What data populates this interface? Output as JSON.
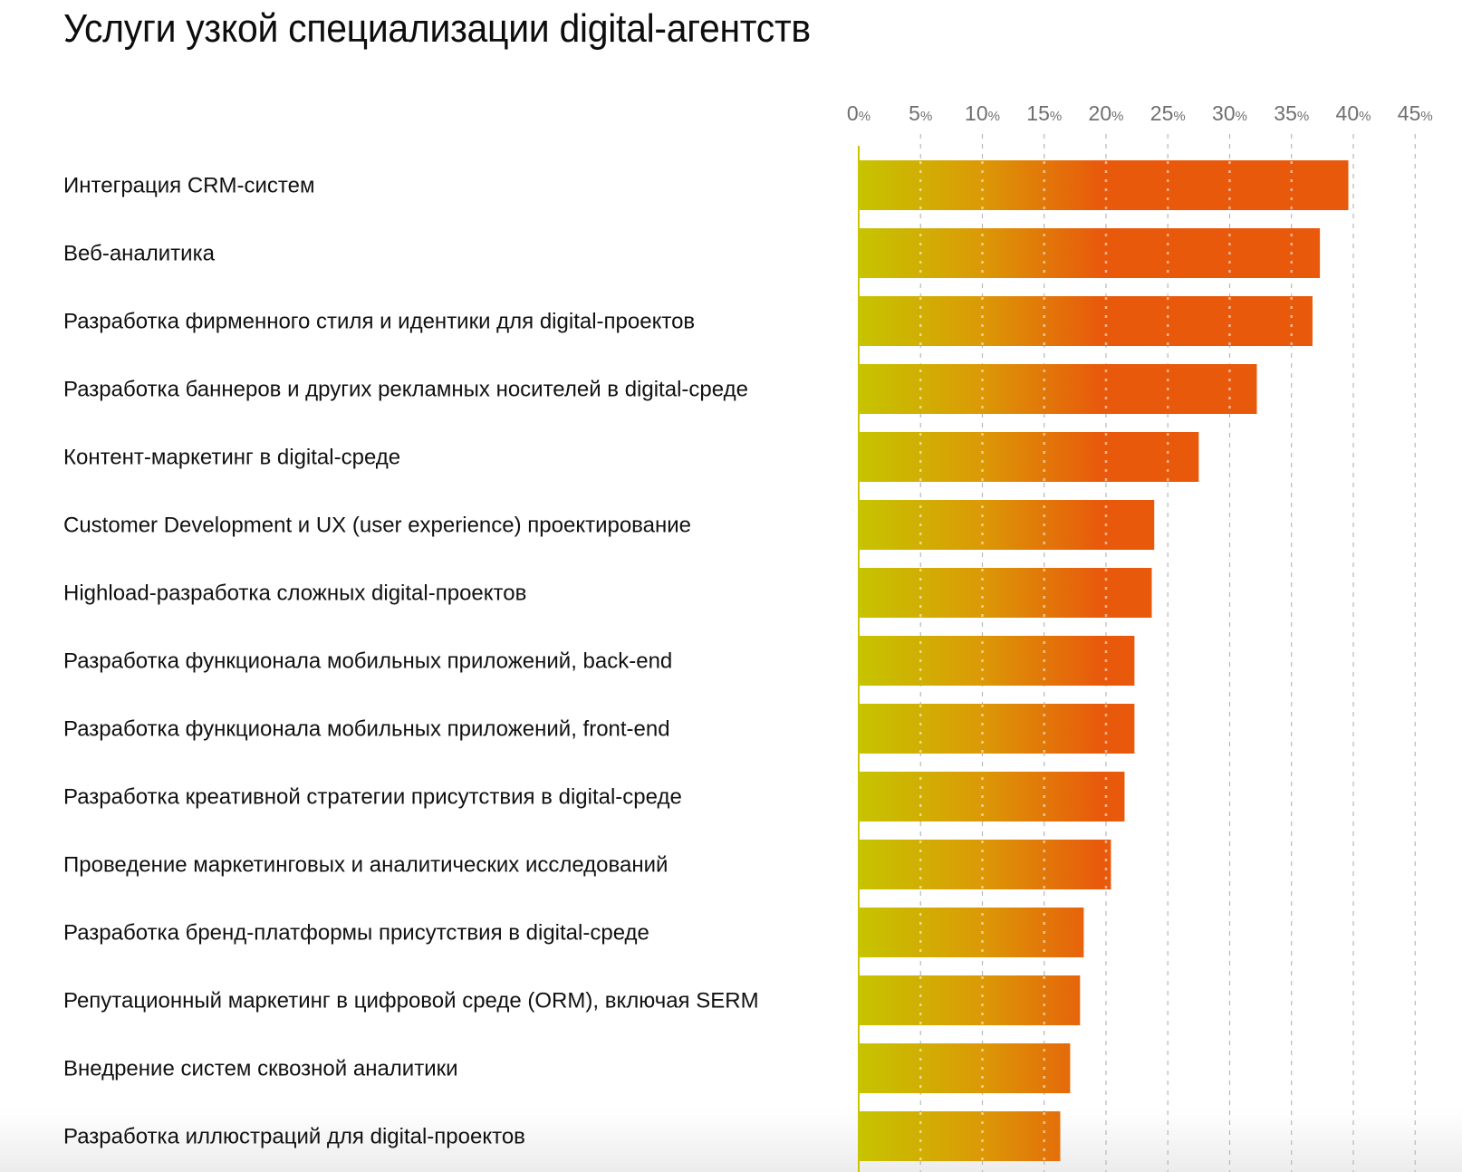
{
  "title": "Услуги узкой специализации digital-агентств",
  "colors": {
    "gradient_start": "#c6c400",
    "gradient_mid": "#db9a06",
    "gradient_end": "#e8590c",
    "gridline": "#b8b8b8",
    "axis": "#c8c400",
    "tick_text": "#6f6f6f"
  },
  "chart_data": {
    "type": "bar",
    "orientation": "horizontal",
    "title": "Услуги узкой специализации digital-агентств",
    "xlabel": "",
    "ylabel": "",
    "xlim": [
      0,
      45
    ],
    "grid": true,
    "x_ticks": [
      0,
      5,
      10,
      15,
      20,
      25,
      30,
      35,
      40,
      45
    ],
    "x_tick_labels": [
      "0",
      "5",
      "10",
      "15",
      "20",
      "25",
      "30",
      "35",
      "40",
      "45"
    ],
    "tick_suffix": "%",
    "categories": [
      "Интеграция CRM-систем",
      "Веб-аналитика",
      "Разработка фирменного стиля и идентики для digital-проектов",
      "Разработка баннеров и других рекламных носителей в digital-среде",
      "Контент-маркетинг в digital-среде",
      "Customer Development и UX (user experience) проектирование",
      "Highload-разработка сложных digital-проектов",
      "Разработка функционала мобильных приложений, back-end",
      "Разработка функционала мобильных приложений, front-end",
      "Разработка креативной стратегии присутствия в digital-среде",
      "Проведение маркетинговых и аналитических исследований",
      "Разработка бренд-платформы присутствия в digital-среде",
      "Репутационный маркетинг в цифровой среде (ORM), включая SERM",
      "Внедрение систем сквозной аналитики",
      "Разработка иллюстраций для digital-проектов"
    ],
    "values": [
      39.6,
      37.3,
      36.7,
      32.2,
      27.5,
      23.9,
      23.7,
      22.3,
      22.3,
      21.5,
      20.4,
      18.2,
      17.9,
      17.1,
      16.3
    ],
    "unit": "%"
  }
}
